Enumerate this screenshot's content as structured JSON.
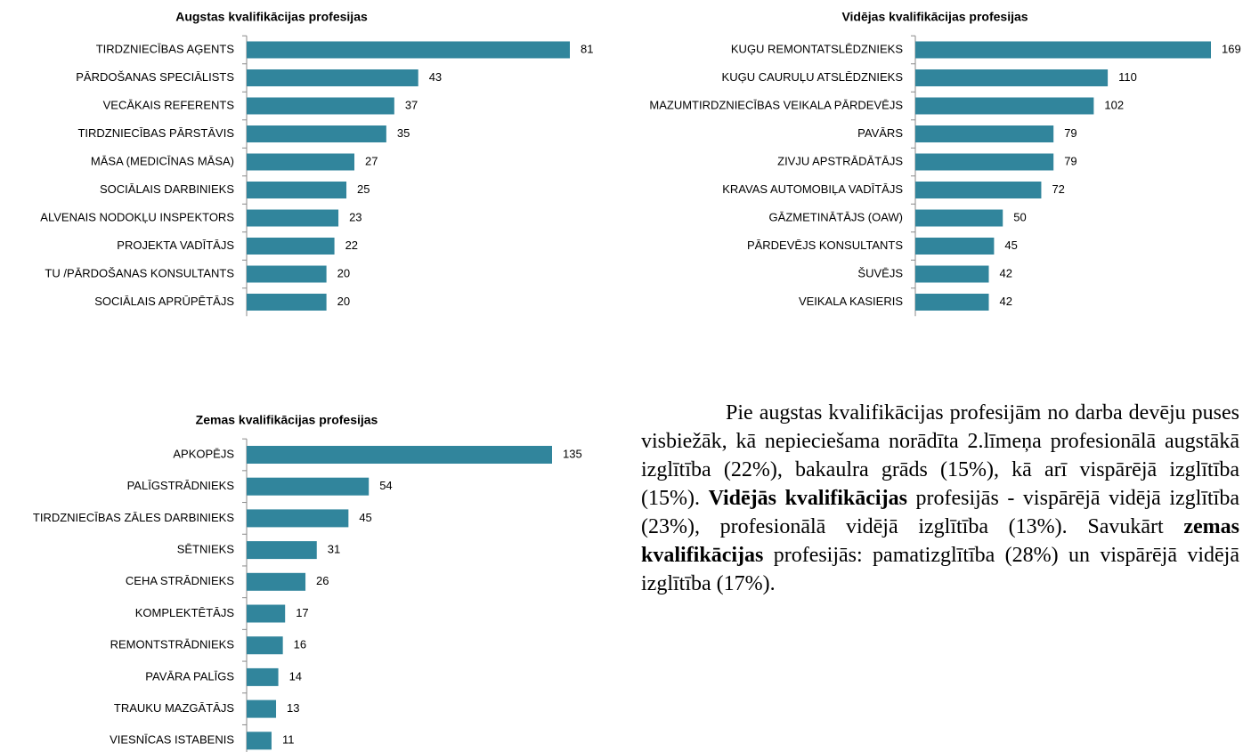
{
  "chart_data": [
    {
      "type": "bar",
      "orientation": "horizontal",
      "title": "Augstas kvalifikācijas profesijas",
      "color": "#31859c",
      "categories": [
        "TIRDZNIECĪBAS AĢENTS",
        "PĀRDOŠANAS SPECIĀLISTS",
        "VECĀKAIS REFERENTS",
        "TIRDZNIECĪBAS PĀRSTĀVIS",
        "MĀSA (MEDICĪNAS MĀSA)",
        "SOCIĀLAIS DARBINIEKS",
        "ALVENAIS NODOKĻU INSPEKTORS",
        "PROJEKTA VADĪTĀJS",
        "TU /PĀRDOŠANAS KONSULTANTS",
        "SOCIĀLAIS APRŪPĒTĀJS"
      ],
      "values": [
        81,
        43,
        37,
        35,
        27,
        25,
        23,
        22,
        20,
        20
      ]
    },
    {
      "type": "bar",
      "orientation": "horizontal",
      "title": "Vidējas kvalifikācijas profesijas",
      "color": "#31859c",
      "categories": [
        "KUĢU REMONTATSLĒDZNIEKS",
        "KUĢU CAURUĻU ATSLĒDZNIEKS",
        "MAZUMTIRDZNIECĪBAS VEIKALA PĀRDEVĒJS",
        "PAVĀRS",
        "ZIVJU APSTRĀDĀTĀJS",
        "KRAVAS AUTOMOBIĻA VADĪTĀJS",
        "GĀZMETINĀTĀJS (OAW)",
        "PĀRDEVĒJS KONSULTANTS",
        "ŠUVĒJS",
        "VEIKALA KASIERIS"
      ],
      "values": [
        169,
        110,
        102,
        79,
        79,
        72,
        50,
        45,
        42,
        42
      ]
    },
    {
      "type": "bar",
      "orientation": "horizontal",
      "title": "Zemas kvalifikācijas profesijas",
      "color": "#31859c",
      "categories": [
        "APKOPĒJS",
        "PALĪGSTRĀDNIEKS",
        "TIRDZNIECĪBAS ZĀLES DARBINIEKS",
        "SĒTNIEKS",
        "CEHA STRĀDNIEKS",
        "KOMPLEKTĒTĀJS",
        "REMONTSTRĀDNIEKS",
        "PAVĀRA PALĪGS",
        "TRAUKU MAZGĀTĀJS",
        "VIESNĪCAS ISTABENIS"
      ],
      "values": [
        135,
        54,
        45,
        31,
        26,
        17,
        16,
        14,
        13,
        11
      ]
    }
  ],
  "paragraph": [
    {
      "text": "Pie augstas kvalifikācijas profesijām no darba devēju puses visbiežāk, kā nepieciešama norādīta 2.līmeņa profesionālā augstākā izglītība (22%), bakaulra grāds (15%), kā arī vispārējā izglītība (15%). ",
      "bold": false
    },
    {
      "text": "Vidējās kvalifikācijas",
      "bold": true
    },
    {
      "text": " profesijās - vispārējā vidējā izglītība (23%), profesionālā vidējā izglītība (13%). Savukārt ",
      "bold": false
    },
    {
      "text": "zemas kvalifikācijas",
      "bold": true
    },
    {
      "text": " profesijās: pamatizglītība (28%) un vispārējā vidējā izglītība (17%).",
      "bold": false
    }
  ]
}
